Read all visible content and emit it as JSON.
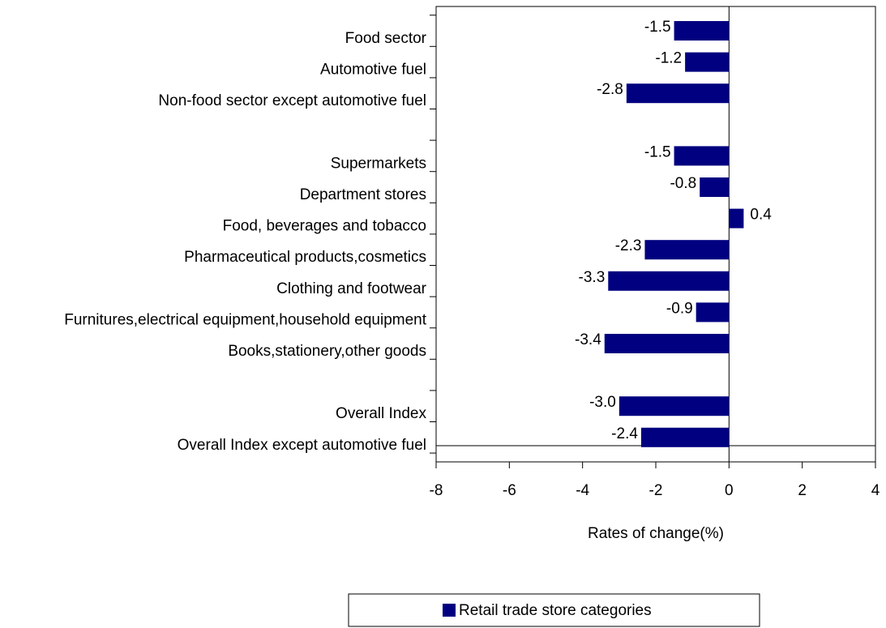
{
  "chart_data": {
    "type": "bar",
    "orientation": "horizontal",
    "categories": [
      "Food sector",
      "Automotive fuel",
      "Non-food sector except automotive fuel",
      null,
      "Supermarkets",
      "Department stores",
      "Food, beverages and tobacco",
      "Pharmaceutical products,cosmetics",
      "Clothing and footwear",
      "Furnitures,electrical equipment,household equipment",
      "Books,stationery,other goods",
      null,
      "Overall Index",
      "Overall Index except automotive fuel"
    ],
    "series": [
      {
        "name": "Retail trade store categories",
        "color": "#000080",
        "values": [
          -1.5,
          -1.2,
          -2.8,
          null,
          -1.5,
          -0.8,
          0.4,
          -2.3,
          -3.3,
          -0.9,
          -3.4,
          null,
          -3.0,
          -2.4
        ],
        "value_labels": [
          "-1.5",
          "-1.2",
          "-2.8",
          null,
          "-1.5",
          "-0.8",
          "0.4",
          "-2.3",
          "-3.3",
          "-0.9",
          "-3.4",
          null,
          "-3.0",
          "-2.4"
        ]
      }
    ],
    "x_label": "Rates of change(%)",
    "xlim": [
      -8,
      4
    ],
    "xticks": [
      -8,
      -6,
      -4,
      -2,
      0,
      2,
      4
    ],
    "grid": false,
    "legend": "bottom"
  }
}
